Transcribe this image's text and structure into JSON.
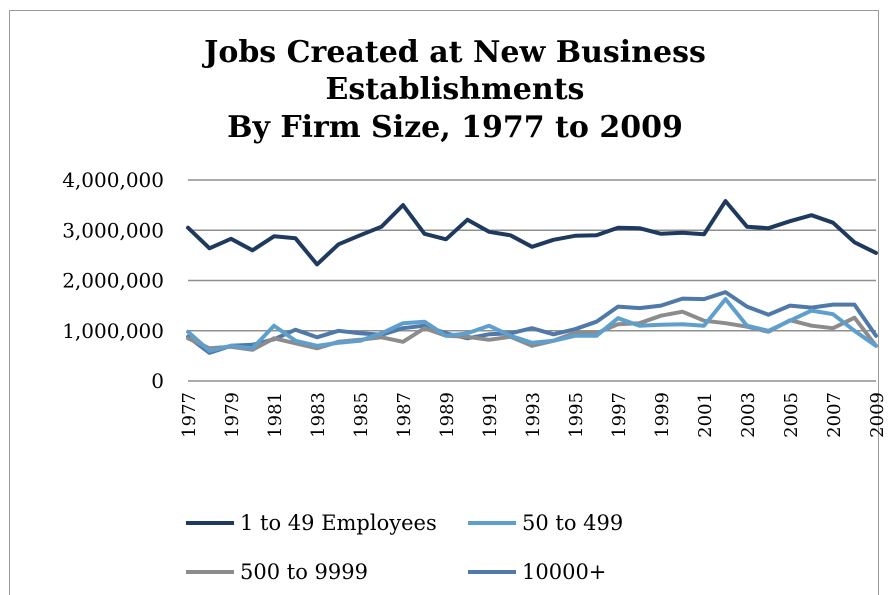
{
  "chart_data": {
    "type": "line",
    "title": [
      "Jobs Created at New Business",
      "Establishments",
      "By Firm Size, 1977 to 2009"
    ],
    "xlabel": "",
    "ylabel": "",
    "ylim": [
      0,
      4000000
    ],
    "yticks": [
      0,
      1000000,
      2000000,
      3000000,
      4000000
    ],
    "ytick_labels": [
      "0",
      "1,000,000",
      "2,000,000",
      "3,000,000",
      "4,000,000"
    ],
    "grid": true,
    "legend_position": "bottom",
    "x": [
      1977,
      1978,
      1979,
      1980,
      1981,
      1982,
      1983,
      1984,
      1985,
      1986,
      1987,
      1988,
      1989,
      1990,
      1991,
      1992,
      1993,
      1994,
      1995,
      1996,
      1997,
      1998,
      1999,
      2000,
      2001,
      2002,
      2003,
      2004,
      2005,
      2006,
      2007,
      2008,
      2009
    ],
    "xtick_labels": [
      "1977",
      "1979",
      "1981",
      "1983",
      "1985",
      "1987",
      "1989",
      "1991",
      "1993",
      "1995",
      "1997",
      "1999",
      "2001",
      "2003",
      "2005",
      "2007",
      "2009"
    ],
    "series": [
      {
        "name": "1 to 49 Employees",
        "color": "#1f3a5f",
        "values": [
          3050000,
          2640000,
          2830000,
          2600000,
          2880000,
          2840000,
          2320000,
          2720000,
          2900000,
          3070000,
          3500000,
          2930000,
          2820000,
          3210000,
          2970000,
          2900000,
          2670000,
          2810000,
          2890000,
          2900000,
          3050000,
          3040000,
          2930000,
          2950000,
          2920000,
          3580000,
          3070000,
          3040000,
          3180000,
          3300000,
          3150000,
          2760000,
          2550000
        ]
      },
      {
        "name": "50 to 499",
        "color": "#5f9fcd",
        "values": [
          980000,
          600000,
          700000,
          650000,
          1100000,
          800000,
          700000,
          760000,
          800000,
          950000,
          1150000,
          1180000,
          900000,
          950000,
          1100000,
          900000,
          760000,
          800000,
          900000,
          900000,
          1250000,
          1100000,
          1120000,
          1130000,
          1100000,
          1630000,
          1100000,
          1000000,
          1200000,
          1400000,
          1330000,
          1000000,
          700000
        ]
      },
      {
        "name": "500 to 9999",
        "color": "#8c8c8c",
        "values": [
          850000,
          650000,
          680000,
          620000,
          850000,
          750000,
          650000,
          780000,
          820000,
          870000,
          780000,
          1050000,
          900000,
          880000,
          820000,
          880000,
          700000,
          800000,
          960000,
          950000,
          1130000,
          1150000,
          1300000,
          1380000,
          1200000,
          1150000,
          1080000,
          980000,
          1210000,
          1100000,
          1050000,
          1260000,
          700000
        ]
      },
      {
        "name": "10000+",
        "color": "#4f79a9",
        "values": [
          880000,
          560000,
          700000,
          720000,
          830000,
          1020000,
          870000,
          1000000,
          950000,
          920000,
          1050000,
          1100000,
          950000,
          850000,
          930000,
          950000,
          1050000,
          930000,
          1030000,
          1180000,
          1480000,
          1450000,
          1500000,
          1640000,
          1630000,
          1770000,
          1480000,
          1320000,
          1500000,
          1460000,
          1520000,
          1520000,
          900000
        ]
      }
    ]
  }
}
